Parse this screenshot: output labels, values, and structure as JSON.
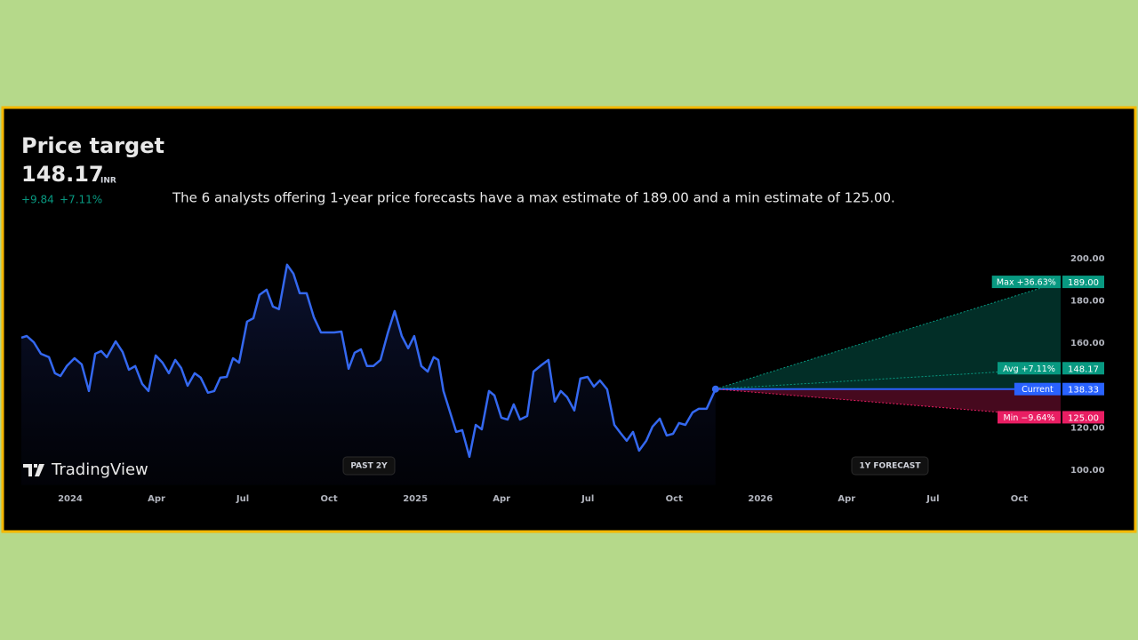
{
  "header": {
    "title": "Price target",
    "price": "148.17",
    "currency": "INR",
    "change": "+9.84",
    "change_pct": "+7.11%",
    "description": "The 6 analysts offering 1-year price forecasts have a max estimate of 189.00 and a min estimate of 125.00."
  },
  "logo": "TradingView",
  "buttons": [
    "PAST 2Y",
    "1Y FORECAST"
  ],
  "chart_data": {
    "type": "line",
    "xlim": [
      -1.7,
      34.44
    ],
    "xticks": [
      {
        "value": 0,
        "label": "2024"
      },
      {
        "value": 3,
        "label": "Apr"
      },
      {
        "value": 6,
        "label": "Jul"
      },
      {
        "value": 9,
        "label": "Oct"
      },
      {
        "value": 12,
        "label": "2025"
      },
      {
        "value": 15,
        "label": "Apr"
      },
      {
        "value": 18,
        "label": "Jul"
      },
      {
        "value": 21,
        "label": "Oct"
      },
      {
        "value": 24,
        "label": "2026"
      },
      {
        "value": 27,
        "label": "Apr"
      },
      {
        "value": 30,
        "label": "Jul"
      },
      {
        "value": 33,
        "label": "Oct"
      }
    ],
    "ylim": [
      93,
      205
    ],
    "yticks": [
      {
        "value": 100,
        "label": "100.00"
      },
      {
        "value": 120,
        "label": "120.00"
      },
      {
        "value": 160,
        "label": "160.00"
      },
      {
        "value": 180,
        "label": "180.00"
      },
      {
        "value": 200,
        "label": "200.00"
      }
    ],
    "series": [
      {
        "color": "#3468f0",
        "x": [
          -1.7,
          -1.51,
          -1.27,
          -1.02,
          -0.74,
          -0.53,
          -0.34,
          -0.12,
          0.15,
          0.4,
          0.65,
          0.87,
          1.08,
          1.27,
          1.58,
          1.82,
          2.04,
          2.26,
          2.5,
          2.72,
          2.97,
          3.21,
          3.43,
          3.65,
          3.86,
          4.08,
          4.33,
          4.54,
          4.79,
          5.01,
          5.22,
          5.44,
          5.66,
          5.87,
          6.15,
          6.37,
          6.58,
          6.83,
          7.05,
          7.26,
          7.54,
          7.76,
          7.98,
          8.22,
          8.47,
          8.72,
          8.93,
          9.18,
          9.43,
          9.68,
          9.89,
          10.11,
          10.32,
          10.54,
          10.79,
          11.04,
          11.28,
          11.53,
          11.75,
          11.96,
          12.21,
          12.43,
          12.64,
          12.8,
          12.98,
          13.2,
          13.42,
          13.63,
          13.88,
          14.1,
          14.31,
          14.56,
          14.75,
          14.99,
          15.21,
          15.42,
          15.64,
          15.89,
          16.11,
          16.38,
          16.63,
          16.85,
          17.06,
          17.28,
          17.53,
          17.74,
          17.99,
          18.21,
          18.42,
          18.67,
          18.92,
          19.13,
          19.35,
          19.57,
          19.78,
          20.03,
          20.25,
          20.5,
          20.74,
          20.96,
          21.17,
          21.39,
          21.64,
          21.85,
          22.13,
          22.44
        ],
        "values": [
          162.6,
          163.4,
          160.5,
          155.0,
          153.4,
          145.8,
          144.5,
          149.2,
          152.9,
          150.0,
          137.4,
          155.0,
          156.3,
          153.4,
          160.9,
          155.9,
          147.5,
          149.2,
          140.8,
          137.4,
          154.2,
          150.8,
          145.8,
          152.1,
          148.3,
          139.9,
          145.8,
          143.7,
          136.6,
          137.4,
          143.7,
          144.1,
          152.9,
          150.8,
          170.2,
          171.8,
          182.8,
          185.3,
          177.3,
          176.1,
          197.1,
          192.9,
          183.6,
          183.6,
          172.3,
          165.1,
          165.1,
          165.1,
          165.5,
          147.9,
          155.5,
          157.1,
          149.2,
          149.2,
          152.1,
          164.7,
          175.2,
          163.4,
          157.6,
          163.4,
          149.2,
          146.6,
          153.4,
          152.1,
          137.4,
          127.7,
          118.1,
          118.9,
          106.3,
          121.4,
          119.3,
          137.4,
          135.3,
          124.8,
          123.9,
          131.1,
          123.9,
          125.6,
          146.6,
          149.6,
          152.1,
          132.4,
          137.4,
          134.5,
          128.2,
          143.3,
          144.1,
          139.5,
          142.4,
          138.2,
          121.4,
          117.6,
          113.9,
          118.1,
          109.2,
          113.9,
          120.6,
          124.4,
          116.4,
          117.2,
          122.3,
          121.4,
          127.3,
          129.0,
          129.0,
          138.33
        ]
      }
    ],
    "forecast": {
      "names": [
        "Max +36.63%",
        "Avg +7.11%",
        "Current",
        "Min −9.64%"
      ],
      "values": [
        189,
        148.17,
        138.33,
        125
      ],
      "value_labels": [
        "189.00",
        "148.17",
        "138.33",
        "125.00"
      ],
      "colors": [
        "#089981",
        "#089981",
        "#2962ff",
        "#e91e63"
      ]
    }
  }
}
